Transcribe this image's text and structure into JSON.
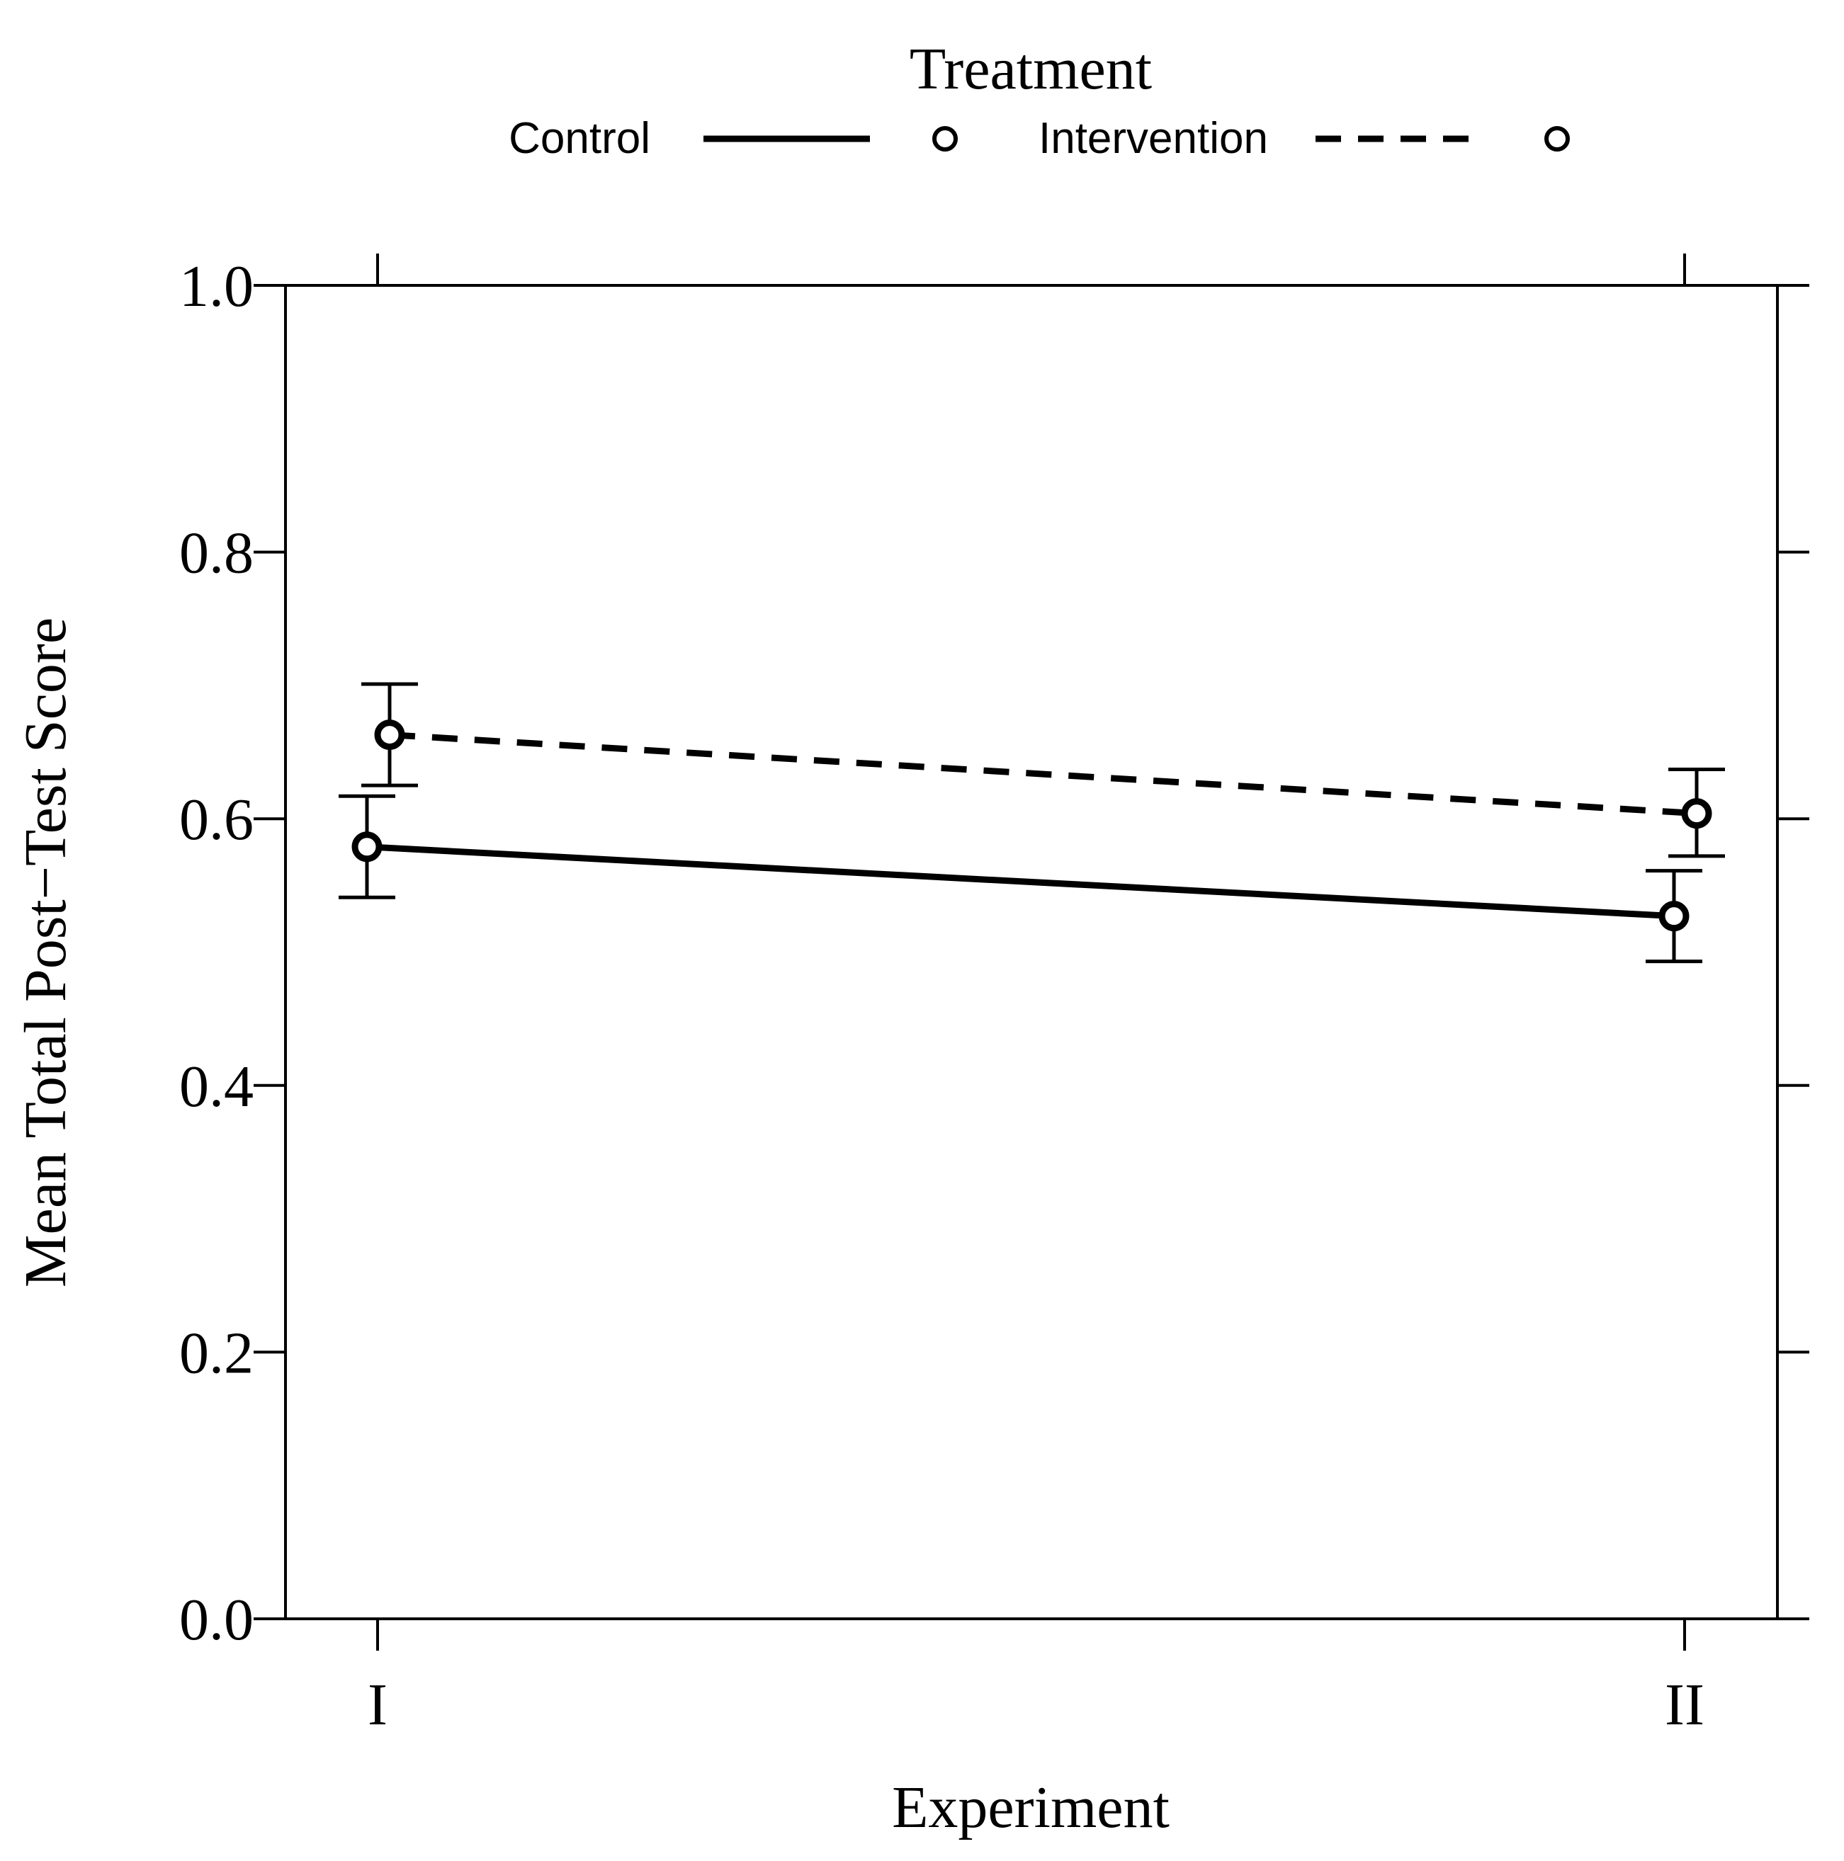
{
  "chart_data": {
    "type": "line",
    "legend_title": "Treatment",
    "legend_position": "top",
    "xlabel": "Experiment",
    "ylabel": "Mean Total Post−Test Score",
    "categories": [
      "I",
      "II"
    ],
    "ylim": [
      0,
      1
    ],
    "yticks": [
      "0.0",
      "0.2",
      "0.4",
      "0.6",
      "0.8",
      "1.0"
    ],
    "ytick_values": [
      0,
      0.2,
      0.4,
      0.6,
      0.8,
      1.0
    ],
    "series": [
      {
        "name": "Control",
        "line_style": "solid",
        "marker": "circle",
        "values": [
          0.579,
          0.527
        ],
        "error_low": [
          0.541,
          0.493
        ],
        "error_high": [
          0.617,
          0.561
        ]
      },
      {
        "name": "Intervention",
        "line_style": "dashed",
        "marker": "circle",
        "values": [
          0.663,
          0.604
        ],
        "error_low": [
          0.625,
          0.572
        ],
        "error_high": [
          0.701,
          0.637
        ]
      }
    ]
  },
  "colors": {
    "ink": "#000000",
    "background": "#ffffff"
  }
}
